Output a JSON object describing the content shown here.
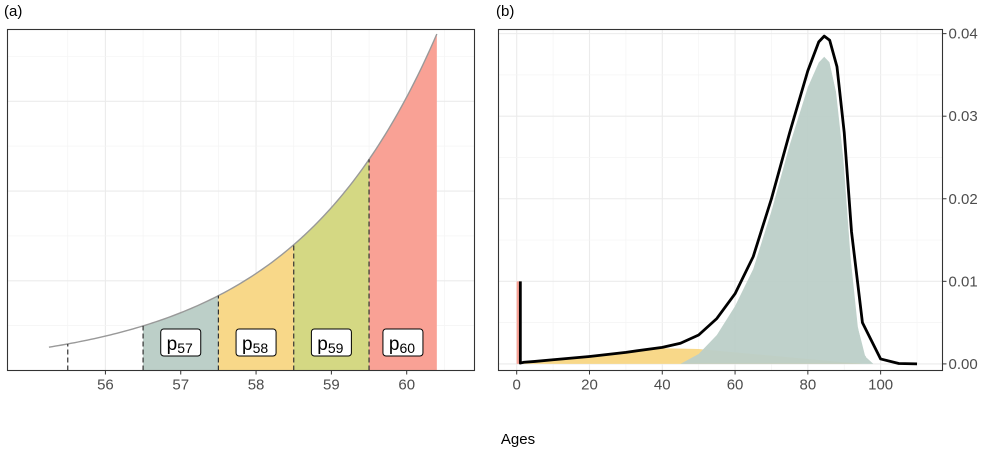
{
  "chart_data": [
    {
      "panel_label": "(a)",
      "type": "area",
      "xlim": [
        54.7,
        60.9
      ],
      "ylim": [
        0.0,
        0.038
      ],
      "xticks": [
        56,
        57,
        58,
        59,
        60
      ],
      "grid": true,
      "curve": {
        "color": "#999999",
        "x_start": 55.25,
        "x_end": 60.4,
        "y_start": 0.0026,
        "y_end": 0.0375
      },
      "segments": [
        {
          "label": "p",
          "sub": "57",
          "x0": 56.5,
          "x1": 57.5,
          "color": "#BCCFC8"
        },
        {
          "label": "p",
          "sub": "58",
          "x0": 57.5,
          "x1": 58.5,
          "color": "#F8D889"
        },
        {
          "label": "p",
          "sub": "59",
          "x0": 58.5,
          "x1": 59.5,
          "color": "#D4D883"
        },
        {
          "label": "p",
          "sub": "60",
          "x0": 59.5,
          "x1": 60.4,
          "color": "#F9A195"
        }
      ],
      "vlines": [
        55.5,
        56.5,
        57.5,
        58.5,
        59.5
      ]
    },
    {
      "panel_label": "(b)",
      "type": "area",
      "xlim": [
        -5,
        117
      ],
      "ylim": [
        -0.0008,
        0.0405
      ],
      "xticks": [
        0,
        20,
        40,
        60,
        80,
        100
      ],
      "yticks": [
        0.0,
        0.01,
        0.02,
        0.03,
        0.04
      ],
      "ytick_labels": [
        "0.00",
        "0.01",
        "0.02",
        "0.03",
        "0.04"
      ],
      "y_axis_side": "right",
      "grid": true,
      "total_density": {
        "color": "#000000",
        "x": [
          1,
          1,
          2,
          5,
          10,
          20,
          30,
          40,
          45,
          50,
          55,
          60,
          65,
          70,
          75,
          80,
          83,
          84.5,
          86,
          88,
          90,
          92,
          95,
          100,
          105,
          110
        ],
        "y": [
          0.01,
          0.0001,
          0.0002,
          0.0003,
          0.0005,
          0.0009,
          0.0014,
          0.002,
          0.0025,
          0.0035,
          0.0055,
          0.0085,
          0.013,
          0.02,
          0.028,
          0.0355,
          0.039,
          0.0397,
          0.0392,
          0.036,
          0.028,
          0.016,
          0.005,
          0.0006,
          5e-05,
          0.0
        ]
      },
      "component_early": {
        "color": "#F9A195",
        "x": [
          0,
          0,
          1,
          1
        ],
        "y": [
          0,
          0.01,
          0.01,
          0
        ]
      },
      "component_middle": {
        "color": "#F8D889",
        "x": [
          1,
          10,
          20,
          30,
          40,
          50,
          60,
          70,
          80,
          90,
          95
        ],
        "y": [
          0,
          0.0004,
          0.0009,
          0.0014,
          0.0019,
          0.0018,
          0.0014,
          0.001,
          0.0006,
          0.0002,
          0
        ]
      },
      "component_late": {
        "color": "#BCCFC8",
        "x": [
          45,
          50,
          55,
          60,
          65,
          70,
          75,
          80,
          83,
          84.5,
          86,
          88,
          90,
          92,
          94,
          96,
          98
        ],
        "y": [
          0,
          0.0012,
          0.0035,
          0.007,
          0.0115,
          0.0185,
          0.0265,
          0.0335,
          0.0365,
          0.0372,
          0.0365,
          0.0325,
          0.024,
          0.012,
          0.004,
          0.0008,
          0
        ]
      },
      "white_curve": {
        "color": "#ffffff",
        "x": [
          50,
          55,
          60,
          65,
          70,
          75,
          80,
          83,
          84.5,
          86,
          88,
          90,
          92,
          94,
          96
        ],
        "y": [
          0.0035,
          0.0052,
          0.0085,
          0.013,
          0.02,
          0.0275,
          0.034,
          0.037,
          0.0375,
          0.037,
          0.033,
          0.025,
          0.013,
          0.0045,
          0.001
        ]
      }
    }
  ],
  "xlabel": "Ages"
}
